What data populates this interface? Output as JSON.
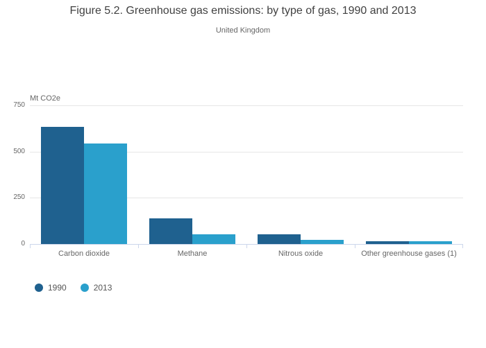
{
  "colors": {
    "series_1990": "#1f618f",
    "series_2013": "#2aa0cc",
    "gridline": "#e6e6e6",
    "axis_line": "#ccd6eb",
    "title_text": "#404040",
    "muted_text": "#666666"
  },
  "chart_data": {
    "type": "bar",
    "title": "Figure 5.2. Greenhouse gas emissions: by type of gas, 1990 and 2013",
    "subtitle": "United Kingdom",
    "ylabel": "Mt CO2e",
    "xlabel": "",
    "categories": [
      "Carbon dioxide",
      "Methane",
      "Nitrous oxide",
      "Other greenhouse gases (1)"
    ],
    "series": [
      {
        "name": "1990",
        "color": "#1f618f",
        "values": [
          635,
          137,
          51,
          16
        ]
      },
      {
        "name": "2013",
        "color": "#2aa0cc",
        "values": [
          542,
          53,
          22,
          16
        ]
      }
    ],
    "ylim": [
      0,
      750
    ],
    "yticks": [
      0,
      250,
      500,
      750
    ],
    "grid": true,
    "legend_position": "bottom-left",
    "legend_labels": [
      "1990",
      "2013"
    ]
  }
}
